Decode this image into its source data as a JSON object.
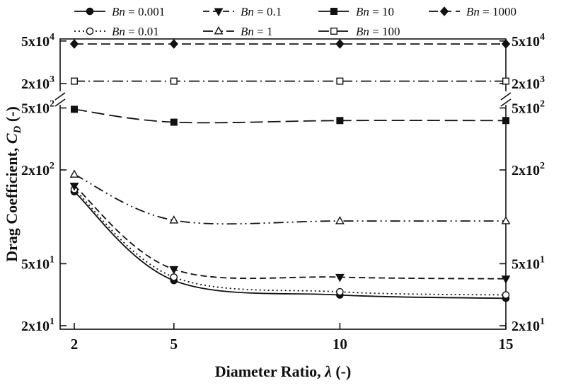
{
  "figure": {
    "background": "#ffffff",
    "ink": "#111111",
    "description": "Log-scale line chart of drag coefficient versus diameter ratio for seven Bingham numbers, with a broken y-axis"
  },
  "chart_data": {
    "type": "line",
    "title": "",
    "xlabel": {
      "prefix": "Diameter Ratio, ",
      "symbol": "λ",
      "suffix": " (-)"
    },
    "ylabel": {
      "prefix": "Drag Coefficient, ",
      "symbol": "C",
      "subscript": "D",
      "suffix": " (-)"
    },
    "x": [
      2,
      5,
      10,
      15
    ],
    "x_tick_labels": [
      "2",
      "5",
      "10",
      "15"
    ],
    "x_range": [
      2,
      15
    ],
    "y_scale": "log-broken",
    "y_segments": [
      [
        20,
        700
      ],
      [
        1500,
        50000
      ]
    ],
    "y_ticks": [
      {
        "value": 20,
        "mantissa": "2x10",
        "exponent": "1"
      },
      {
        "value": 50,
        "mantissa": "5x10",
        "exponent": "1"
      },
      {
        "value": 200,
        "mantissa": "2x10",
        "exponent": "2"
      },
      {
        "value": 500,
        "mantissa": "5x10",
        "exponent": "2"
      },
      {
        "value": 2000,
        "mantissa": "2x10",
        "exponent": "3"
      },
      {
        "value": 50000,
        "mantissa": "5x10",
        "exponent": "4"
      }
    ],
    "legend": {
      "symbol": "Bn",
      "equals": " = ",
      "position": "top",
      "rows": 2,
      "order": "column-major"
    },
    "series": [
      {
        "name": "Bn = 0.001",
        "value_label": "0.001",
        "line": "solid",
        "marker": "circle",
        "fill": "filled",
        "values": [
          145,
          39,
          31.5,
          30
        ]
      },
      {
        "name": "Bn = 0.01",
        "value_label": "0.01",
        "line": "dotted",
        "marker": "circle",
        "fill": "open",
        "values": [
          150,
          41,
          33,
          31.5
        ]
      },
      {
        "name": "Bn = 0.1",
        "value_label": "0.1",
        "line": "dashed",
        "marker": "triangle-down",
        "fill": "filled",
        "values": [
          158,
          46,
          41,
          40
        ]
      },
      {
        "name": "Bn = 1",
        "value_label": "1",
        "line": "dash-dot-dot",
        "marker": "triangle-up",
        "fill": "open",
        "values": [
          187,
          95,
          94,
          94
        ]
      },
      {
        "name": "Bn = 10",
        "value_label": "10",
        "line": "long-dash",
        "marker": "square",
        "fill": "filled",
        "values": [
          490,
          405,
          415,
          415
        ]
      },
      {
        "name": "Bn = 100",
        "value_label": "100",
        "line": "dash-dot",
        "marker": "square",
        "fill": "open",
        "values": [
          2400,
          2400,
          2400,
          2400
        ]
      },
      {
        "name": "Bn = 1000",
        "value_label": "1000",
        "line": "dashed-long",
        "marker": "diamond",
        "fill": "filled",
        "values": [
          40000,
          40000,
          40000,
          40000
        ]
      }
    ]
  }
}
